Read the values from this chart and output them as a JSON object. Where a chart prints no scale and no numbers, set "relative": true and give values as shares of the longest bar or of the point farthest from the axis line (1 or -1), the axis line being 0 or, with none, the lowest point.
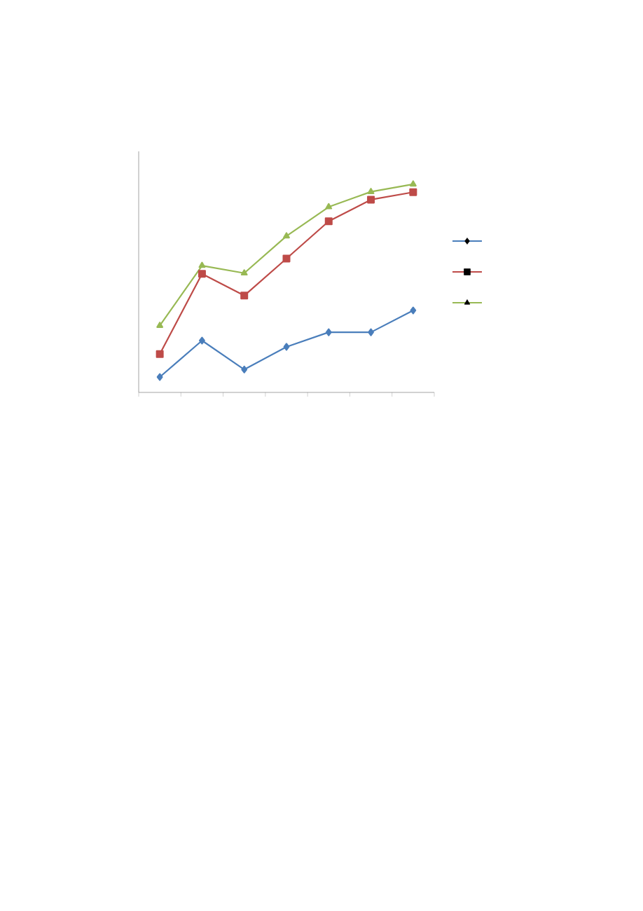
{
  "chart_data": {
    "type": "line",
    "relative": true,
    "categories": [
      null,
      null,
      null,
      null,
      null,
      null,
      null
    ],
    "legend": false,
    "grid": false,
    "series": [
      {
        "color": "#4a7ebb",
        "marker": "diamond",
        "values": [
          0.074,
          0.249,
          0.11,
          0.219,
          0.289,
          0.289,
          0.394
        ]
      },
      {
        "color": "#be4b48",
        "marker": "square",
        "values": [
          0.184,
          0.57,
          0.465,
          0.643,
          0.822,
          0.926,
          0.962
        ]
      },
      {
        "color": "#98b954",
        "marker": "triangle",
        "values": [
          0.321,
          0.609,
          0.573,
          0.751,
          0.891,
          0.964,
          1
        ]
      }
    ]
  }
}
